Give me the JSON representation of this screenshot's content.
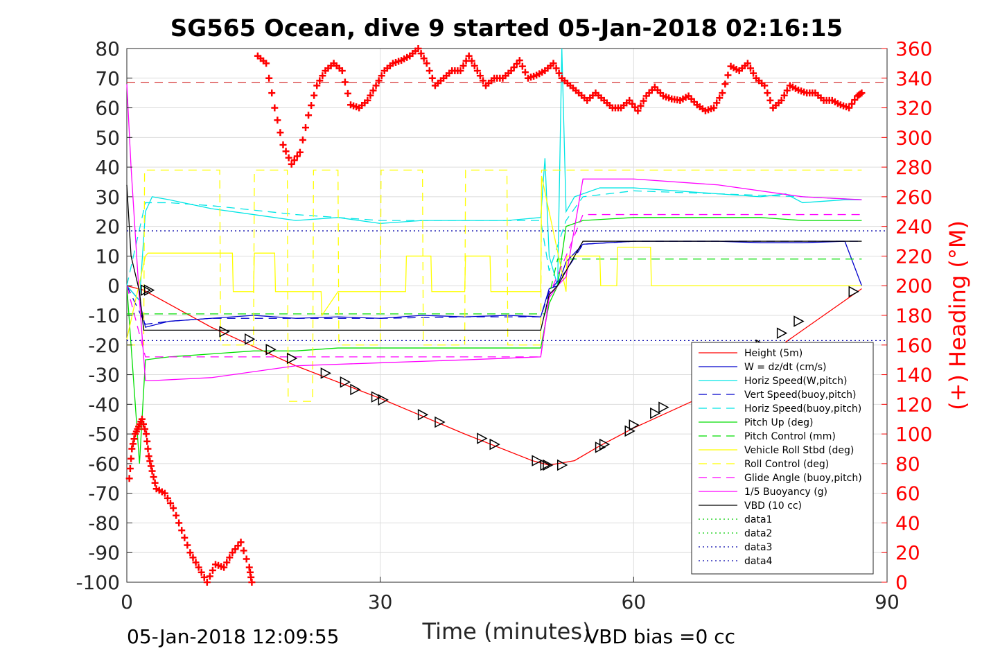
{
  "chart_data": {
    "type": "line",
    "title": "SG565 Ocean, dive 9 started 05-Jan-2018 02:16:15",
    "xlabel": "Time (minutes)",
    "ylabel_right": "(+) Heading (°M)",
    "footer_left": "05-Jan-2018 12:09:55",
    "footer_right": "VBD bias =0 cc",
    "xlim": [
      0,
      90
    ],
    "ylim_left": [
      -100,
      80
    ],
    "ylim_right": [
      0,
      360
    ],
    "xticks": [
      0,
      30,
      60,
      90
    ],
    "xtick_labels": [
      "0",
      "30",
      "60",
      "90"
    ],
    "yticks_left": [
      80,
      70,
      60,
      50,
      40,
      30,
      20,
      10,
      0,
      -10,
      -20,
      -30,
      -40,
      -50,
      -60,
      -70,
      -80,
      -90,
      -100
    ],
    "ytick_labels_left": [
      "80",
      "70",
      "60",
      "50",
      "40",
      "30",
      "20",
      "10",
      "0",
      "-10",
      "-20",
      "-30",
      "-40",
      "-50",
      "-60",
      "-70",
      "-80",
      "-90",
      "-100"
    ],
    "yticks_right": [
      360,
      340,
      320,
      300,
      280,
      260,
      240,
      220,
      200,
      180,
      160,
      140,
      120,
      100,
      80,
      60,
      40,
      20,
      0
    ],
    "ytick_labels_right": [
      "360",
      "340",
      "320",
      "300",
      "280",
      "260",
      "240",
      "220",
      "200",
      "180",
      "160",
      "140",
      "120",
      "100",
      "80",
      "60",
      "40",
      "20",
      "0"
    ],
    "grid": true,
    "legend_position": "bottom-right",
    "series": [
      {
        "name": "Height (5m)",
        "color": "#ff0000",
        "style": "solid",
        "x": [
          0,
          2,
          10,
          20,
          30,
          40,
          48,
          50,
          53,
          56,
          60,
          70,
          80,
          87
        ],
        "y": [
          0,
          -1.5,
          -14,
          -27,
          -38,
          -50,
          -59,
          -60.5,
          -59,
          -54,
          -48,
          -35,
          -15,
          -1
        ]
      },
      {
        "name": "W = dz/dt (cm/s)",
        "color": "#0000cc",
        "style": "solid",
        "x": [
          0,
          1.5,
          2.2,
          5,
          10,
          15,
          20,
          25,
          30,
          35,
          40,
          45,
          49,
          50,
          51,
          52,
          54,
          57,
          60,
          65,
          70,
          75,
          80,
          85,
          87
        ],
        "y": [
          0,
          -5,
          -14,
          -12,
          -11,
          -10,
          -11,
          -10.5,
          -11,
          -10,
          -10.5,
          -10,
          -10.5,
          -1,
          0,
          8,
          14,
          14.5,
          15,
          15,
          15,
          14.5,
          14.5,
          15,
          0
        ]
      },
      {
        "name": "Horiz Speed(W,pitch)",
        "color": "#00e5e5",
        "style": "solid",
        "x": [
          0,
          1.5,
          2.2,
          3,
          5,
          10,
          15,
          20,
          25,
          30,
          35,
          40,
          45,
          49,
          49.5,
          50,
          51,
          51.5,
          52,
          53,
          56,
          60,
          65,
          70,
          75,
          78,
          80,
          85,
          87
        ],
        "y": [
          0,
          -5,
          25,
          30,
          29,
          26,
          24,
          22,
          23,
          21,
          22,
          22,
          22,
          23,
          43,
          10,
          0,
          80,
          25,
          30,
          33,
          33,
          32,
          31,
          30,
          31,
          28,
          29,
          29
        ]
      },
      {
        "name": "Vert Speed(buoy,pitch)",
        "color": "#0000cc",
        "style": "dashed",
        "x": [
          0,
          2.2,
          5,
          10,
          20,
          30,
          40,
          49,
          50,
          52,
          54,
          60,
          70,
          80,
          87
        ],
        "y": [
          0,
          -13,
          -12,
          -11,
          -11,
          -11,
          -10.5,
          -10.5,
          -2,
          5,
          14,
          15,
          15,
          15,
          15
        ]
      },
      {
        "name": "Horiz Speed(buoy,pitch)",
        "color": "#00e5e5",
        "style": "dashed",
        "x": [
          0,
          2.2,
          5,
          10,
          20,
          30,
          40,
          49,
          50,
          52,
          54,
          60,
          70,
          80,
          87
        ],
        "y": [
          0,
          28,
          28,
          27,
          24,
          22,
          22,
          22,
          5,
          22,
          30,
          32,
          31,
          30,
          29
        ]
      },
      {
        "name": "Pitch Up (deg)",
        "color": "#00dd00",
        "style": "solid",
        "x": [
          0,
          1.5,
          2.2,
          5,
          10,
          15,
          20,
          25,
          30,
          35,
          40,
          45,
          49,
          50,
          51,
          52,
          54,
          60,
          65,
          70,
          75,
          80,
          85,
          87
        ],
        "y": [
          0,
          -60,
          -25,
          -24,
          -23,
          -22,
          -22,
          -21,
          -21,
          -21,
          -21,
          -21,
          -21,
          -6,
          0,
          20,
          22,
          23,
          23,
          23,
          23,
          22,
          22,
          22
        ]
      },
      {
        "name": "Pitch Control (mm)",
        "color": "#00dd00",
        "style": "dashed",
        "x": [
          0,
          2,
          49,
          49.5,
          51,
          52,
          87
        ],
        "y": [
          -9.5,
          -9.5,
          -9.5,
          -9.5,
          9,
          9,
          9
        ]
      },
      {
        "name": "Vehicle Roll Stbd (deg)",
        "color": "#ffff00",
        "style": "solid",
        "x": [
          0,
          2.2,
          2.5,
          12.5,
          12.6,
          15,
          15.1,
          17.5,
          17.6,
          20,
          20.1,
          23,
          23.1,
          25,
          25.1,
          28,
          28.1,
          30,
          30.1,
          33,
          33.1,
          36,
          36.1,
          40,
          40.1,
          43,
          43.1,
          49,
          49.1,
          52,
          52.1,
          56,
          56.1,
          58,
          58.1,
          62,
          62.1,
          87
        ],
        "y": [
          -18,
          10,
          11,
          11,
          -2,
          -2,
          11,
          11,
          -2,
          -2,
          -2,
          -2,
          -10,
          -2,
          -2,
          -2,
          -2,
          -2,
          -2,
          -2,
          10,
          10,
          -2,
          -2,
          10,
          10,
          -2,
          -2,
          37,
          -2,
          10,
          10,
          0,
          0,
          13,
          13,
          0,
          0
        ]
      },
      {
        "name": "Roll Control (deg)",
        "color": "#ffff00",
        "style": "dashed",
        "x": [
          0,
          2,
          2.1,
          11,
          11.1,
          15,
          15.1,
          19,
          19.1,
          22,
          22.1,
          25,
          25.1,
          30,
          30.1,
          35,
          35.1,
          40,
          40.1,
          45,
          45.1,
          49,
          49.1,
          87
        ],
        "y": [
          -20,
          -20,
          39,
          39,
          -20,
          -20,
          39,
          39,
          -39,
          -39,
          39,
          39,
          -20,
          -20,
          39,
          39,
          -20,
          -20,
          39,
          39,
          -20,
          -20,
          39,
          39
        ]
      },
      {
        "name": "Glide Angle (buoy,pitch)",
        "color": "#ff00ff",
        "style": "dashed",
        "x": [
          0,
          2.2,
          10,
          20,
          30,
          40,
          49,
          50,
          52,
          54,
          60,
          70,
          80,
          87
        ],
        "y": [
          0,
          -24,
          -24,
          -24,
          -24,
          -24,
          -24,
          -3,
          10,
          24,
          24,
          24,
          24,
          24
        ]
      },
      {
        "name": "1/5 Buoyancy (g)",
        "color": "#ff00ff",
        "style": "solid",
        "x": [
          0,
          0.5,
          1.5,
          2.2,
          3,
          10,
          20,
          30,
          40,
          49,
          50,
          51,
          52,
          54,
          60,
          70,
          80,
          87
        ],
        "y": [
          68,
          40,
          -5,
          -32,
          -32,
          -31,
          -27,
          -26,
          -25,
          -24,
          -4,
          0,
          3,
          36,
          36,
          34,
          30,
          29
        ]
      },
      {
        "name": "VBD (10 cc)",
        "color": "#000000",
        "style": "solid",
        "x": [
          0,
          0.5,
          1.5,
          2,
          49,
          50,
          51,
          53,
          54,
          87
        ],
        "y": [
          34,
          10,
          -2,
          -15,
          -15,
          -3,
          0,
          10,
          15,
          15
        ]
      },
      {
        "name": "data1",
        "color": "#00cc00",
        "style": "dotted",
        "x": [],
        "y": []
      },
      {
        "name": "data2",
        "color": "#00cc00",
        "style": "dotted",
        "x": [],
        "y": []
      },
      {
        "name": "data3",
        "color": "#0000aa",
        "style": "dotted",
        "x": [
          0,
          90
        ],
        "y": [
          18.5,
          18.5
        ]
      },
      {
        "name": "data4",
        "color": "#0000aa",
        "style": "dotted",
        "x": [
          0,
          90
        ],
        "y": [
          -18.5,
          -18.5
        ]
      }
    ],
    "reference_line_left": {
      "y": 68.5,
      "color": "#cc0000",
      "style": "dashed"
    },
    "heading_series": {
      "color": "#ff0000",
      "marker": "+",
      "axis": "right",
      "x": [
        0.3,
        0.6,
        1.0,
        1.4,
        1.8,
        2.3,
        2.6,
        3.0,
        3.5,
        4.5,
        5.5,
        6.5,
        7.5,
        8.5,
        9.5,
        10.5,
        11.5,
        12.5,
        13.5,
        14.5,
        14.8,
        15.5,
        16.5,
        17.5,
        18.5,
        19.5,
        20.5,
        21.5,
        22.5,
        23.5,
        24.5,
        25.5,
        26.5,
        27.5,
        28.5,
        29.5,
        30.5,
        31.5,
        32.5,
        33.5,
        34.5,
        35.5,
        36.5,
        37.5,
        38.5,
        39.5,
        40.5,
        41.5,
        42.5,
        43.5,
        44.5,
        45.5,
        46.5,
        47.5,
        48.5,
        49.5,
        50.5,
        51.5,
        52.5,
        53.5,
        54.5,
        55.5,
        56.5,
        57.5,
        58.5,
        59.5,
        60.5,
        61.5,
        62.5,
        63.5,
        64.5,
        65.5,
        66.5,
        67.5,
        68.5,
        69.5,
        70.5,
        71.5,
        72.5,
        73.5,
        74.5,
        75.5,
        76.5,
        77.5,
        78.5,
        79.5,
        80.5,
        81.5,
        82.5,
        83.5,
        84.5,
        85.5,
        86.5,
        87
      ],
      "y": [
        70,
        90,
        100,
        105,
        110,
        100,
        85,
        75,
        63,
        60,
        50,
        35,
        20,
        10,
        0,
        12,
        10,
        20,
        27,
        10,
        0,
        355,
        350,
        320,
        295,
        282,
        290,
        315,
        335,
        345,
        350,
        345,
        322,
        320,
        325,
        335,
        345,
        350,
        352,
        355,
        360,
        350,
        335,
        340,
        345,
        345,
        355,
        345,
        335,
        340,
        340,
        345,
        352,
        340,
        342,
        345,
        350,
        340,
        335,
        330,
        325,
        330,
        325,
        320,
        320,
        325,
        318,
        328,
        334,
        328,
        326,
        325,
        328,
        322,
        318,
        320,
        330,
        348,
        345,
        350,
        340,
        335,
        320,
        325,
        335,
        332,
        330,
        330,
        325,
        325,
        322,
        320,
        328,
        330
      ]
    },
    "triangle_markers": {
      "color": "#000000",
      "x": [
        2.2,
        2.6,
        11.5,
        14.5,
        17,
        19.5,
        23.5,
        25.8,
        27,
        29.5,
        30.3,
        35,
        37,
        42,
        43.5,
        48.5,
        49.5,
        49.8,
        51.5,
        56,
        56.5,
        59.5,
        60,
        62.5,
        63.5,
        75,
        77.5,
        79.5,
        86
      ],
      "y": [
        -1.5,
        -1.5,
        -15.5,
        -18,
        -21.5,
        -24.5,
        -29.5,
        -32.5,
        -35,
        -37.5,
        -38.5,
        -43.5,
        -46,
        -51.5,
        -53.5,
        -59,
        -60.5,
        -60.5,
        -60.5,
        -54.5,
        -53.5,
        -49,
        -47,
        -43,
        -41,
        -20,
        -16,
        -12,
        -2
      ]
    }
  },
  "legend": {
    "items": [
      {
        "label": "Height (5m)",
        "color": "#ff0000",
        "style": "solid"
      },
      {
        "label": "W = dz/dt (cm/s)",
        "color": "#0000cc",
        "style": "solid"
      },
      {
        "label": "Horiz Speed(W,pitch)",
        "color": "#00e5e5",
        "style": "solid"
      },
      {
        "label": "Vert Speed(buoy,pitch)",
        "color": "#0000cc",
        "style": "dashed"
      },
      {
        "label": "Horiz Speed(buoy,pitch)",
        "color": "#00e5e5",
        "style": "dashed"
      },
      {
        "label": "Pitch Up (deg)",
        "color": "#00dd00",
        "style": "solid"
      },
      {
        "label": "Pitch Control (mm)",
        "color": "#00dd00",
        "style": "dashed"
      },
      {
        "label": "Vehicle Roll Stbd (deg)",
        "color": "#ffff00",
        "style": "solid"
      },
      {
        "label": "Roll Control (deg)",
        "color": "#ffff00",
        "style": "dashed"
      },
      {
        "label": "Glide Angle (buoy,pitch)",
        "color": "#ff00ff",
        "style": "dashed"
      },
      {
        "label": "1/5 Buoyancy (g)",
        "color": "#ff00ff",
        "style": "solid"
      },
      {
        "label": "VBD (10 cc)",
        "color": "#000000",
        "style": "solid"
      },
      {
        "label": "data1",
        "color": "#00cc00",
        "style": "dotted"
      },
      {
        "label": "data2",
        "color": "#00cc00",
        "style": "dotted"
      },
      {
        "label": "data3",
        "color": "#0000aa",
        "style": "dotted"
      },
      {
        "label": "data4",
        "color": "#0000aa",
        "style": "dotted"
      }
    ]
  }
}
